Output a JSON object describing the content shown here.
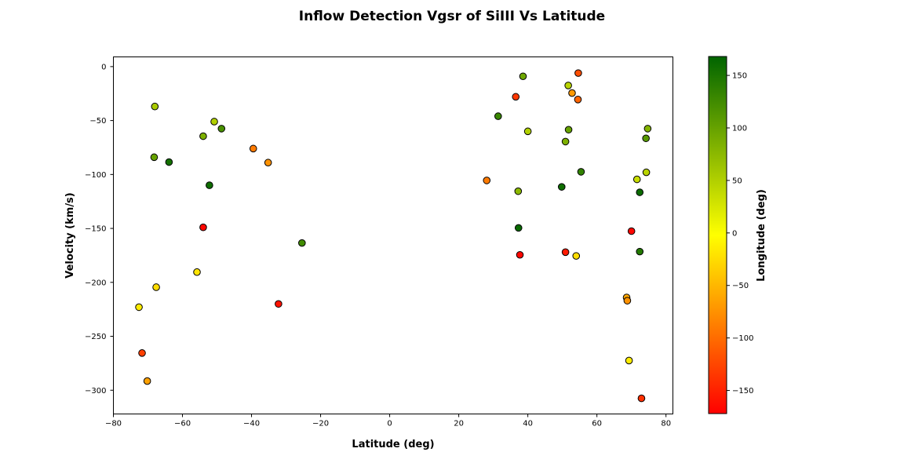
{
  "chart_data": {
    "type": "scatter",
    "title": "Inflow Detection Vgsr of SiIII Vs Latitude",
    "xlabel": "Latitude (deg)",
    "ylabel": "Velocity (km/s)",
    "xlim": [
      -80,
      82
    ],
    "ylim": [
      -322,
      9
    ],
    "xticks": [
      -80,
      -60,
      -40,
      -20,
      0,
      20,
      40,
      60,
      80
    ],
    "xtick_labels": [
      "−80",
      "−60",
      "−40",
      "−20",
      "0",
      "20",
      "40",
      "60",
      "80"
    ],
    "yticks": [
      0,
      -50,
      -100,
      -150,
      -200,
      -250,
      -300
    ],
    "ytick_labels": [
      "0",
      "−50",
      "−100",
      "−150",
      "−200",
      "−250",
      "−300"
    ],
    "grid": false,
    "colorbar": {
      "label": "Longitude (deg)",
      "range": [
        -172,
        168
      ],
      "ticks": [
        150,
        100,
        50,
        0,
        -50,
        -100,
        -150
      ],
      "tick_labels": [
        "150",
        "100",
        "50",
        "0",
        "−50",
        "−100",
        "−150"
      ],
      "colors": [
        "#ff0000",
        "#ffff00",
        "#006400"
      ]
    },
    "points": [
      {
        "x": -68,
        "y": -37,
        "c": 55
      },
      {
        "x": -50.8,
        "y": -51,
        "c": 50
      },
      {
        "x": -48.7,
        "y": -57.5,
        "c": 120
      },
      {
        "x": -54,
        "y": -64.5,
        "c": 85
      },
      {
        "x": -68.2,
        "y": -84,
        "c": 100
      },
      {
        "x": -63.9,
        "y": -88.5,
        "c": 155
      },
      {
        "x": -39.5,
        "y": -76,
        "c": -90
      },
      {
        "x": -35.2,
        "y": -89,
        "c": -75
      },
      {
        "x": -52.2,
        "y": -110,
        "c": 158
      },
      {
        "x": -54,
        "y": -149,
        "c": -168
      },
      {
        "x": -25.4,
        "y": -163.5,
        "c": 125
      },
      {
        "x": -55.8,
        "y": -190.5,
        "c": -20
      },
      {
        "x": -67.6,
        "y": -204.5,
        "c": -25
      },
      {
        "x": -72.6,
        "y": -223,
        "c": -15
      },
      {
        "x": -32.2,
        "y": -220,
        "c": -160
      },
      {
        "x": -71.7,
        "y": -265.5,
        "c": -130
      },
      {
        "x": -70.2,
        "y": -291.5,
        "c": -65
      },
      {
        "x": 38.6,
        "y": -9,
        "c": 95
      },
      {
        "x": 54.6,
        "y": -6,
        "c": -120
      },
      {
        "x": 51.7,
        "y": -17.5,
        "c": 45
      },
      {
        "x": 36.5,
        "y": -28,
        "c": -135
      },
      {
        "x": 52.8,
        "y": -24.5,
        "c": -70
      },
      {
        "x": 54.5,
        "y": -30.5,
        "c": -105
      },
      {
        "x": 31.4,
        "y": -46,
        "c": 130
      },
      {
        "x": 40,
        "y": -60,
        "c": 50
      },
      {
        "x": 51.8,
        "y": -58.5,
        "c": 100
      },
      {
        "x": 50.9,
        "y": -69.5,
        "c": 85
      },
      {
        "x": 74.7,
        "y": -57.5,
        "c": 80
      },
      {
        "x": 74.2,
        "y": -66.5,
        "c": 110
      },
      {
        "x": 55.4,
        "y": -97.5,
        "c": 135
      },
      {
        "x": 74.3,
        "y": -98,
        "c": 45
      },
      {
        "x": 71.6,
        "y": -104.5,
        "c": 35
      },
      {
        "x": 28.1,
        "y": -105.5,
        "c": -90
      },
      {
        "x": 37.2,
        "y": -115.5,
        "c": 75
      },
      {
        "x": 49.8,
        "y": -111.5,
        "c": 158
      },
      {
        "x": 72.4,
        "y": -116.5,
        "c": 160
      },
      {
        "x": 37.3,
        "y": -149.5,
        "c": 162
      },
      {
        "x": 70,
        "y": -152.5,
        "c": -168
      },
      {
        "x": 37.7,
        "y": -174.5,
        "c": -168
      },
      {
        "x": 50.9,
        "y": -172,
        "c": -155
      },
      {
        "x": 54,
        "y": -175.5,
        "c": -25
      },
      {
        "x": 72.4,
        "y": -171.5,
        "c": 145
      },
      {
        "x": 68.6,
        "y": -214,
        "c": -60
      },
      {
        "x": 68.8,
        "y": -217,
        "c": -75
      },
      {
        "x": 69.3,
        "y": -272.5,
        "c": -15
      },
      {
        "x": 72.9,
        "y": -307.5,
        "c": -140
      }
    ]
  }
}
